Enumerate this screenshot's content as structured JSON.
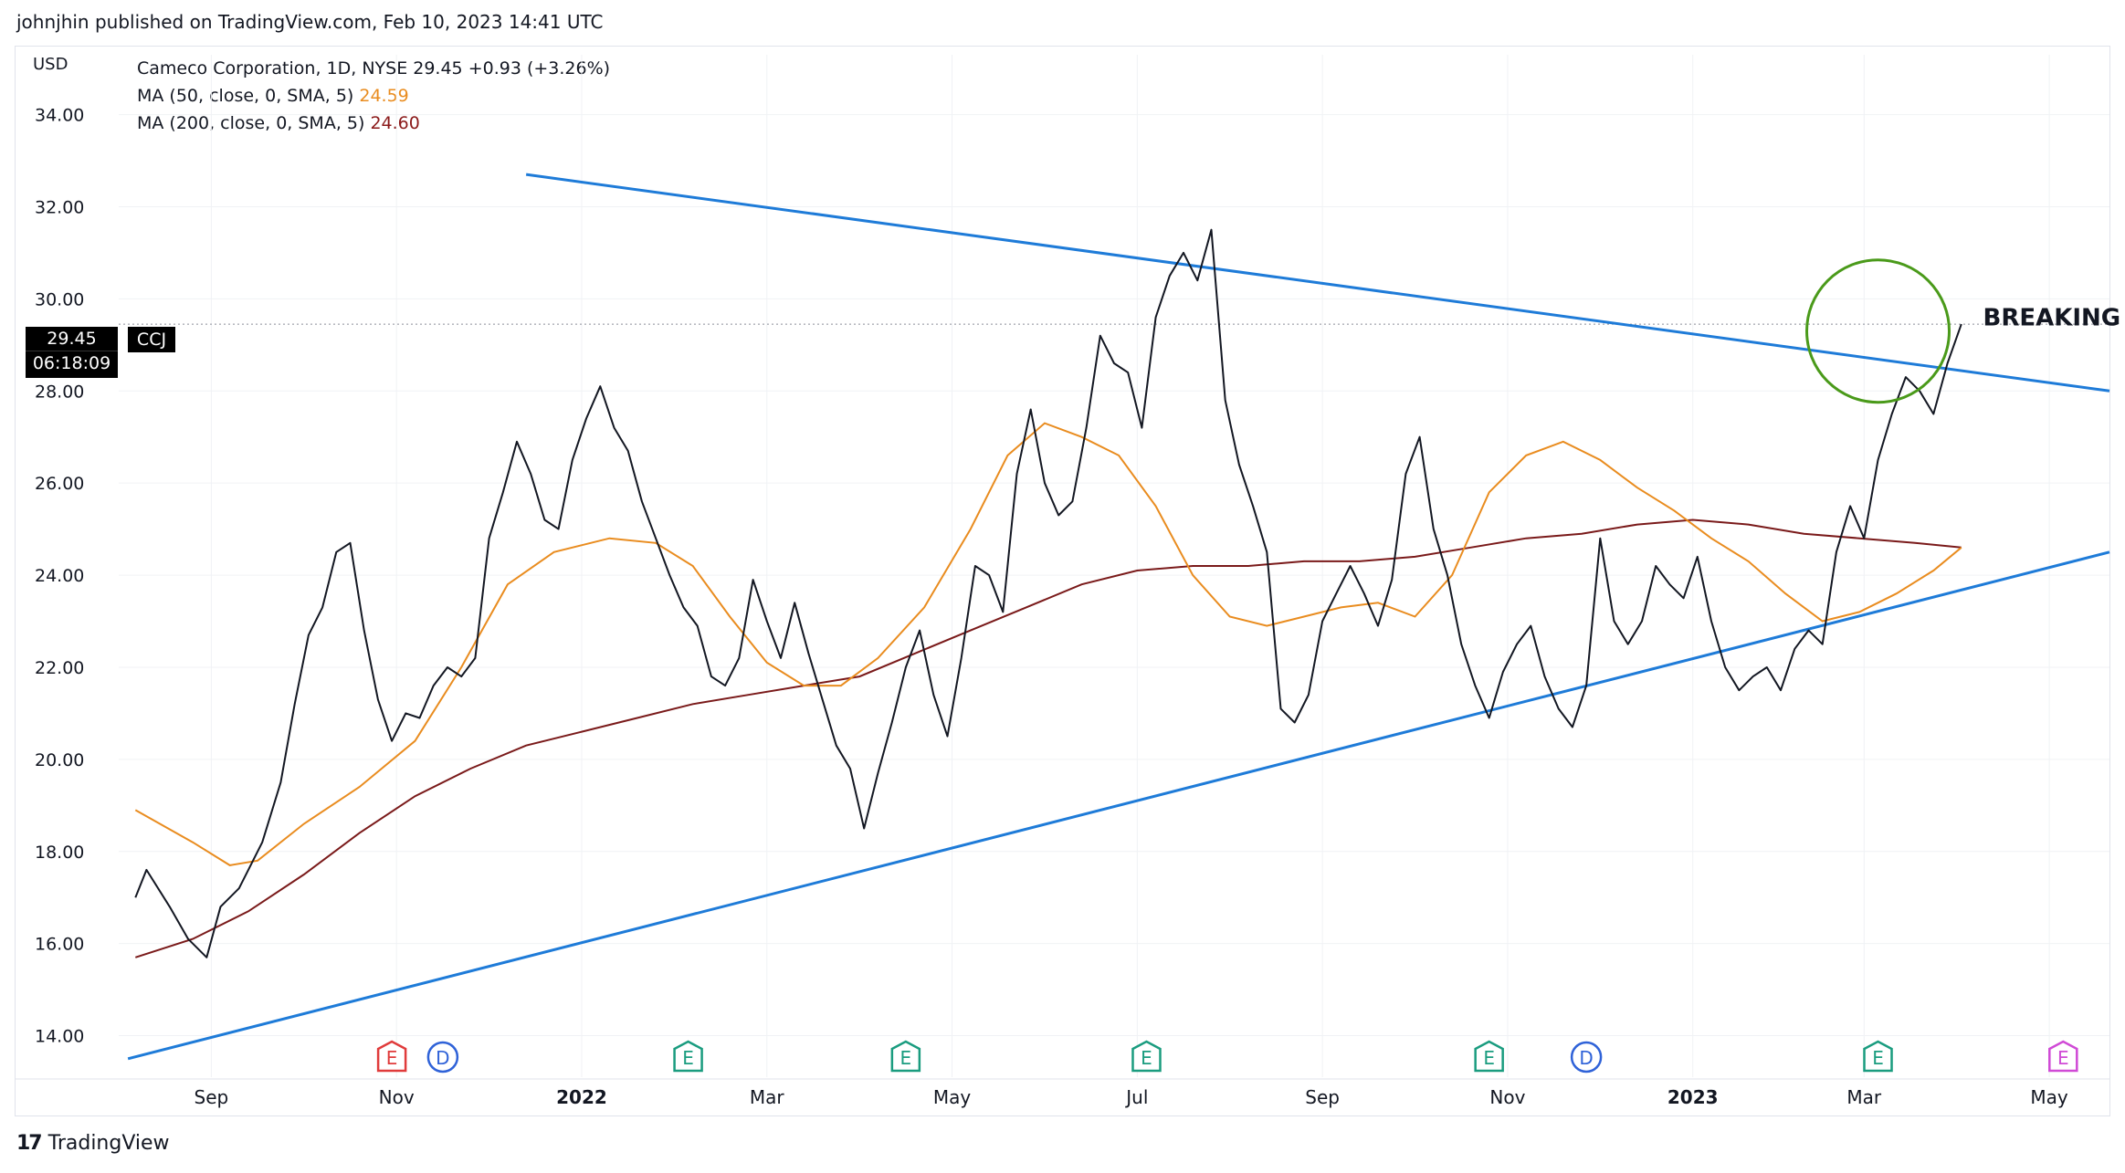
{
  "caption": "johnjhin published on TradingView.com, Feb 10, 2023 14:41 UTC",
  "currency": "USD",
  "legend": {
    "symbol": "Cameco Corporation, 1D, NYSE  29.45  +0.93 (+3.26%)",
    "ma50_label": "MA (50, close, 0, SMA, 5)",
    "ma50_value": "24.59",
    "ma200_label": "MA (200, close, 0, SMA, 5)",
    "ma200_value": "24.60"
  },
  "price_tag": {
    "price": "29.45",
    "countdown": "06:18:09",
    "ticker": "CCJ"
  },
  "annotation": "BREAKING OUT",
  "footer": {
    "brand": "TradingView",
    "logo_mark": "17"
  },
  "colors": {
    "price": "#131722",
    "ma50": "#e98c1f",
    "ma200": "#7a1a1a",
    "trendline": "#1e7bd8",
    "circle": "#4a9a1a",
    "earnings": "#1a9c7f",
    "earnings_red": "#e03b3b",
    "dividend": "#2f62d8",
    "future": "#d04ad6"
  },
  "chart_data": {
    "type": "line",
    "title": "Cameco Corporation, 1D, NYSE",
    "ylim": [
      13.0,
      35.3
    ],
    "x_domain_months": [
      0,
      21.5
    ],
    "y_ticks": [
      "34.00",
      "32.00",
      "30.00",
      "28.00",
      "26.00",
      "24.00",
      "22.00",
      "20.00",
      "18.00",
      "16.00",
      "14.00"
    ],
    "y_tick_values": [
      34,
      32,
      30,
      28,
      26,
      24,
      22,
      20,
      18,
      16,
      14
    ],
    "x_ticks": [
      {
        "label": "Sep",
        "month": 1.0,
        "bold": false
      },
      {
        "label": "Nov",
        "month": 3.0,
        "bold": false
      },
      {
        "label": "2022",
        "month": 5.0,
        "bold": true
      },
      {
        "label": "Mar",
        "month": 7.0,
        "bold": false
      },
      {
        "label": "May",
        "month": 9.0,
        "bold": false
      },
      {
        "label": "Jul",
        "month": 11.0,
        "bold": false
      },
      {
        "label": "Sep",
        "month": 13.0,
        "bold": false
      },
      {
        "label": "Nov",
        "month": 15.0,
        "bold": false
      },
      {
        "label": "2023",
        "month": 17.0,
        "bold": true
      },
      {
        "label": "Mar",
        "month": 18.85,
        "bold": false
      },
      {
        "label": "May",
        "month": 20.85,
        "bold": false
      }
    ],
    "price": [
      [
        0.18,
        17.0
      ],
      [
        0.3,
        17.6
      ],
      [
        0.55,
        16.8
      ],
      [
        0.75,
        16.1
      ],
      [
        0.95,
        15.7
      ],
      [
        1.1,
        16.8
      ],
      [
        1.3,
        17.2
      ],
      [
        1.55,
        18.2
      ],
      [
        1.75,
        19.5
      ],
      [
        1.9,
        21.2
      ],
      [
        2.05,
        22.7
      ],
      [
        2.2,
        23.3
      ],
      [
        2.35,
        24.5
      ],
      [
        2.5,
        24.7
      ],
      [
        2.65,
        22.8
      ],
      [
        2.8,
        21.3
      ],
      [
        2.95,
        20.4
      ],
      [
        3.1,
        21.0
      ],
      [
        3.25,
        20.9
      ],
      [
        3.4,
        21.6
      ],
      [
        3.55,
        22.0
      ],
      [
        3.7,
        21.8
      ],
      [
        3.85,
        22.2
      ],
      [
        4.0,
        24.8
      ],
      [
        4.15,
        25.8
      ],
      [
        4.3,
        26.9
      ],
      [
        4.45,
        26.2
      ],
      [
        4.6,
        25.2
      ],
      [
        4.75,
        25.0
      ],
      [
        4.9,
        26.5
      ],
      [
        5.05,
        27.4
      ],
      [
        5.2,
        28.1
      ],
      [
        5.35,
        27.2
      ],
      [
        5.5,
        26.7
      ],
      [
        5.65,
        25.6
      ],
      [
        5.8,
        24.8
      ],
      [
        5.95,
        24.0
      ],
      [
        6.1,
        23.3
      ],
      [
        6.25,
        22.9
      ],
      [
        6.4,
        21.8
      ],
      [
        6.55,
        21.6
      ],
      [
        6.7,
        22.2
      ],
      [
        6.85,
        23.9
      ],
      [
        7.0,
        23.0
      ],
      [
        7.15,
        22.2
      ],
      [
        7.3,
        23.4
      ],
      [
        7.45,
        22.3
      ],
      [
        7.6,
        21.3
      ],
      [
        7.75,
        20.3
      ],
      [
        7.9,
        19.8
      ],
      [
        8.05,
        18.5
      ],
      [
        8.2,
        19.7
      ],
      [
        8.35,
        20.8
      ],
      [
        8.5,
        22.0
      ],
      [
        8.65,
        22.8
      ],
      [
        8.8,
        21.4
      ],
      [
        8.95,
        20.5
      ],
      [
        9.1,
        22.2
      ],
      [
        9.25,
        24.2
      ],
      [
        9.4,
        24.0
      ],
      [
        9.55,
        23.2
      ],
      [
        9.7,
        26.2
      ],
      [
        9.85,
        27.6
      ],
      [
        10.0,
        26.0
      ],
      [
        10.15,
        25.3
      ],
      [
        10.3,
        25.6
      ],
      [
        10.45,
        27.2
      ],
      [
        10.6,
        29.2
      ],
      [
        10.75,
        28.6
      ],
      [
        10.9,
        28.4
      ],
      [
        11.05,
        27.2
      ],
      [
        11.2,
        29.6
      ],
      [
        11.35,
        30.5
      ],
      [
        11.5,
        31.0
      ],
      [
        11.65,
        30.4
      ],
      [
        11.8,
        31.5
      ],
      [
        11.95,
        27.8
      ],
      [
        12.1,
        26.4
      ],
      [
        12.25,
        25.5
      ],
      [
        12.4,
        24.5
      ],
      [
        12.55,
        21.1
      ],
      [
        12.7,
        20.8
      ],
      [
        12.85,
        21.4
      ],
      [
        13.0,
        23.0
      ],
      [
        13.15,
        23.6
      ],
      [
        13.3,
        24.2
      ],
      [
        13.45,
        23.6
      ],
      [
        13.6,
        22.9
      ],
      [
        13.75,
        23.9
      ],
      [
        13.9,
        26.2
      ],
      [
        14.05,
        27.0
      ],
      [
        14.2,
        25.0
      ],
      [
        14.35,
        24.0
      ],
      [
        14.5,
        22.5
      ],
      [
        14.65,
        21.6
      ],
      [
        14.8,
        20.9
      ],
      [
        14.95,
        21.9
      ],
      [
        15.1,
        22.5
      ],
      [
        15.25,
        22.9
      ],
      [
        15.4,
        21.8
      ],
      [
        15.55,
        21.1
      ],
      [
        15.7,
        20.7
      ],
      [
        15.85,
        21.6
      ],
      [
        16.0,
        22.6
      ],
      [
        16.15,
        24.6
      ],
      [
        16.3,
        24.9
      ],
      [
        16.45,
        24.1
      ],
      [
        16.6,
        24.4
      ],
      [
        16.75,
        24.6
      ],
      [
        16.9,
        25.0
      ],
      [
        17.05,
        24.0
      ],
      [
        17.2,
        22.8
      ],
      [
        17.35,
        26.3
      ],
      [
        17.5,
        29.0
      ],
      [
        17.65,
        28.8
      ],
      [
        17.8,
        29.6
      ],
      [
        17.95,
        30.3
      ],
      [
        18.1,
        28.5
      ],
      [
        18.25,
        27.7
      ],
      [
        18.4,
        25.4
      ],
      [
        18.55,
        26.6
      ],
      [
        18.7,
        25.4
      ],
      [
        18.85,
        26.4
      ],
      [
        19.0,
        27.5
      ],
      [
        19.15,
        26.1
      ],
      [
        19.3,
        23.9
      ],
      [
        19.45,
        24.8
      ],
      [
        19.6,
        23.2
      ],
      [
        19.75,
        22.0
      ],
      [
        19.9,
        21.3
      ],
      [
        20.05,
        22.5
      ],
      [
        20.2,
        24.6
      ],
      [
        20.35,
        23.8
      ],
      [
        20.5,
        22.6
      ],
      [
        20.65,
        21.4
      ],
      [
        20.8,
        22.8
      ],
      [
        20.95,
        22.9
      ],
      [
        21.1,
        21.8
      ],
      [
        21.25,
        21.6
      ],
      [
        21.4,
        21.9
      ]
    ],
    "price_tail": [
      [
        15.85,
        21.6
      ],
      [
        16.0,
        24.8
      ],
      [
        16.15,
        23.0
      ],
      [
        16.3,
        22.5
      ],
      [
        16.45,
        23.0
      ],
      [
        16.6,
        24.2
      ],
      [
        16.75,
        23.8
      ],
      [
        16.9,
        23.5
      ],
      [
        17.05,
        24.4
      ],
      [
        17.2,
        23.0
      ],
      [
        17.35,
        22.0
      ],
      [
        17.5,
        21.5
      ],
      [
        17.65,
        21.8
      ],
      [
        17.8,
        22.0
      ],
      [
        17.95,
        21.5
      ],
      [
        18.1,
        22.4
      ],
      [
        18.25,
        22.8
      ],
      [
        18.4,
        22.5
      ],
      [
        18.55,
        24.5
      ],
      [
        18.7,
        25.5
      ],
      [
        18.85,
        24.8
      ],
      [
        19.0,
        26.5
      ],
      [
        19.15,
        27.5
      ],
      [
        19.3,
        28.3
      ],
      [
        19.45,
        28.0
      ],
      [
        19.6,
        27.5
      ],
      [
        19.75,
        28.6
      ],
      [
        19.9,
        29.45
      ]
    ],
    "ma50": [
      [
        0.18,
        18.9
      ],
      [
        0.8,
        18.2
      ],
      [
        1.2,
        17.7
      ],
      [
        1.5,
        17.8
      ],
      [
        2.0,
        18.6
      ],
      [
        2.6,
        19.4
      ],
      [
        3.2,
        20.4
      ],
      [
        3.7,
        22.0
      ],
      [
        4.2,
        23.8
      ],
      [
        4.7,
        24.5
      ],
      [
        5.3,
        24.8
      ],
      [
        5.8,
        24.7
      ],
      [
        6.2,
        24.2
      ],
      [
        6.6,
        23.1
      ],
      [
        7.0,
        22.1
      ],
      [
        7.4,
        21.6
      ],
      [
        7.8,
        21.6
      ],
      [
        8.2,
        22.2
      ],
      [
        8.7,
        23.3
      ],
      [
        9.2,
        25.0
      ],
      [
        9.6,
        26.6
      ],
      [
        10.0,
        27.3
      ],
      [
        10.4,
        27.0
      ],
      [
        10.8,
        26.6
      ],
      [
        11.2,
        25.5
      ],
      [
        11.6,
        24.0
      ],
      [
        12.0,
        23.1
      ],
      [
        12.4,
        22.9
      ],
      [
        12.8,
        23.1
      ],
      [
        13.2,
        23.3
      ],
      [
        13.6,
        23.4
      ],
      [
        14.0,
        23.1
      ],
      [
        14.4,
        24.0
      ],
      [
        14.8,
        25.8
      ],
      [
        15.2,
        26.6
      ],
      [
        15.6,
        26.9
      ],
      [
        16.0,
        26.5
      ],
      [
        16.4,
        25.9
      ],
      [
        16.8,
        25.4
      ],
      [
        17.2,
        24.8
      ],
      [
        17.6,
        24.3
      ],
      [
        18.0,
        23.6
      ],
      [
        18.4,
        23.0
      ],
      [
        18.8,
        23.2
      ],
      [
        19.2,
        23.6
      ],
      [
        19.6,
        24.1
      ],
      [
        19.9,
        24.6
      ]
    ],
    "ma200": [
      [
        0.18,
        15.7
      ],
      [
        0.8,
        16.1
      ],
      [
        1.4,
        16.7
      ],
      [
        2.0,
        17.5
      ],
      [
        2.6,
        18.4
      ],
      [
        3.2,
        19.2
      ],
      [
        3.8,
        19.8
      ],
      [
        4.4,
        20.3
      ],
      [
        5.0,
        20.6
      ],
      [
        5.6,
        20.9
      ],
      [
        6.2,
        21.2
      ],
      [
        6.8,
        21.4
      ],
      [
        7.4,
        21.6
      ],
      [
        8.0,
        21.8
      ],
      [
        8.6,
        22.3
      ],
      [
        9.2,
        22.8
      ],
      [
        9.8,
        23.3
      ],
      [
        10.4,
        23.8
      ],
      [
        11.0,
        24.1
      ],
      [
        11.6,
        24.2
      ],
      [
        12.2,
        24.2
      ],
      [
        12.8,
        24.3
      ],
      [
        13.4,
        24.3
      ],
      [
        14.0,
        24.4
      ],
      [
        14.6,
        24.6
      ],
      [
        15.2,
        24.8
      ],
      [
        15.8,
        24.9
      ],
      [
        16.4,
        25.1
      ],
      [
        17.0,
        25.2
      ],
      [
        17.6,
        25.1
      ],
      [
        18.2,
        24.9
      ],
      [
        18.8,
        24.8
      ],
      [
        19.4,
        24.7
      ],
      [
        19.9,
        24.6
      ]
    ],
    "trendlines": [
      {
        "name": "resistance",
        "from": [
          4.4,
          32.7
        ],
        "to": [
          21.5,
          28.0
        ]
      },
      {
        "name": "support",
        "from": [
          0.1,
          13.5
        ],
        "to": [
          21.5,
          24.5
        ]
      }
    ],
    "last_price_line": 29.45,
    "event_markers": [
      {
        "type": "E",
        "month": 2.95,
        "color": "red"
      },
      {
        "type": "D",
        "month": 3.5,
        "color": "blue"
      },
      {
        "type": "E",
        "month": 6.15,
        "color": "green"
      },
      {
        "type": "E",
        "month": 8.5,
        "color": "green"
      },
      {
        "type": "E",
        "month": 11.1,
        "color": "green"
      },
      {
        "type": "E",
        "month": 14.8,
        "color": "green"
      },
      {
        "type": "D",
        "month": 15.85,
        "color": "blue"
      },
      {
        "type": "E",
        "month": 19.0,
        "color": "green"
      },
      {
        "type": "E",
        "month": 21.0,
        "color": "purple"
      }
    ],
    "circle_highlight": {
      "month": 19.0,
      "price": 29.3
    }
  }
}
